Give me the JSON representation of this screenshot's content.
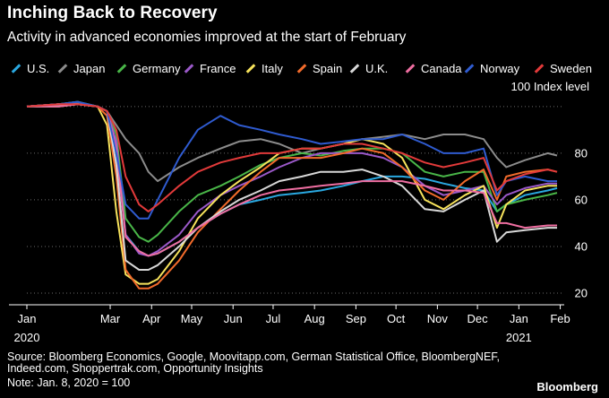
{
  "header": {
    "title": "Inching Back to Recovery",
    "subtitle": "Activity in advanced economies improved at the start of February"
  },
  "footer": {
    "source_line1": "Source: Bloomberg Economics, Google, Moovitapp.com, German Statistical Office, BloombergNEF,",
    "source_line2": "Indeed.com, Shoppertrak.com, Opportunity Insights",
    "note": "Note: Jan. 8, 2020 = 100",
    "brand": "Bloomberg"
  },
  "chart_data": {
    "type": "line",
    "ylabel": "Index level",
    "ylim": [
      15,
      108
    ],
    "yticks": [
      20,
      40,
      60,
      80,
      100
    ],
    "grid": "horizontal dotted",
    "legend_position": "top",
    "x_tick_labels": [
      "Jan",
      "Mar",
      "Apr",
      "May",
      "Jun",
      "Jul",
      "Aug",
      "Sep",
      "Oct",
      "Nov",
      "Dec",
      "Jan",
      "Feb"
    ],
    "x_year_labels": [
      "2020",
      "2021"
    ],
    "x": [
      "Jan 8",
      "Feb 1",
      "Feb 15",
      "Mar 1",
      "Mar 8",
      "Mar 15",
      "Mar 22",
      "Apr 1",
      "Apr 8",
      "Apr 15",
      "May 1",
      "May 15",
      "Jun 1",
      "Jun 15",
      "Jul 1",
      "Jul 15",
      "Aug 1",
      "Aug 15",
      "Sep 1",
      "Sep 15",
      "Oct 1",
      "Oct 15",
      "Nov 1",
      "Nov 15",
      "Dec 1",
      "Dec 15",
      "Dec 25",
      "Jan 1",
      "Jan 15",
      "Feb 1",
      "Feb 8"
    ],
    "series": [
      {
        "name": "U.S.",
        "color": "#2aa8e0",
        "values": [
          100,
          100,
          101,
          100,
          98,
          80,
          45,
          38,
          36,
          37,
          42,
          48,
          54,
          58,
          60,
          62,
          63,
          64,
          66,
          68,
          70,
          70,
          69,
          67,
          65,
          64,
          55,
          58,
          62,
          64,
          65
        ]
      },
      {
        "name": "Japan",
        "color": "#8c8c8c",
        "values": [
          100,
          101,
          102,
          100,
          98,
          92,
          86,
          80,
          72,
          68,
          74,
          78,
          82,
          85,
          86,
          84,
          80,
          82,
          84,
          86,
          87,
          88,
          86,
          88,
          88,
          86,
          78,
          74,
          77,
          80,
          79
        ]
      },
      {
        "name": "Germany",
        "color": "#49b648",
        "values": [
          100,
          101,
          102,
          100,
          98,
          88,
          52,
          44,
          42,
          45,
          55,
          62,
          66,
          70,
          75,
          78,
          80,
          79,
          81,
          82,
          82,
          80,
          72,
          70,
          72,
          72,
          55,
          58,
          60,
          62,
          63
        ]
      },
      {
        "name": "France",
        "color": "#9b59c9",
        "values": [
          100,
          101,
          101,
          100,
          98,
          85,
          45,
          37,
          36,
          38,
          45,
          55,
          62,
          66,
          70,
          74,
          78,
          80,
          80,
          80,
          78,
          74,
          66,
          62,
          64,
          66,
          58,
          62,
          65,
          67,
          67
        ]
      },
      {
        "name": "Italy",
        "color": "#f7e35c",
        "values": [
          100,
          100,
          101,
          100,
          92,
          55,
          28,
          24,
          24,
          26,
          38,
          52,
          62,
          68,
          74,
          80,
          82,
          82,
          84,
          86,
          84,
          78,
          60,
          56,
          62,
          66,
          48,
          58,
          64,
          66,
          66
        ]
      },
      {
        "name": "Spain",
        "color": "#f26b2b",
        "values": [
          100,
          101,
          101,
          100,
          96,
          70,
          30,
          22,
          22,
          24,
          34,
          46,
          56,
          64,
          72,
          78,
          78,
          78,
          80,
          82,
          80,
          74,
          64,
          60,
          68,
          73,
          60,
          70,
          72,
          73,
          72
        ]
      },
      {
        "name": "U.K.",
        "color": "#d8d8d8",
        "values": [
          100,
          101,
          101,
          100,
          98,
          75,
          34,
          30,
          30,
          32,
          40,
          48,
          55,
          60,
          64,
          68,
          70,
          72,
          72,
          73,
          70,
          66,
          56,
          55,
          60,
          64,
          42,
          46,
          47,
          48,
          48
        ]
      },
      {
        "name": "Canada",
        "color": "#ef6ea1",
        "values": [
          100,
          100,
          101,
          100,
          98,
          82,
          44,
          38,
          36,
          37,
          42,
          48,
          54,
          58,
          62,
          64,
          65,
          66,
          67,
          68,
          68,
          68,
          66,
          64,
          64,
          63,
          50,
          50,
          48,
          49,
          49
        ]
      },
      {
        "name": "Norway",
        "color": "#2f5bd0",
        "values": [
          100,
          101,
          102,
          100,
          98,
          80,
          58,
          52,
          52,
          60,
          78,
          90,
          96,
          92,
          90,
          88,
          86,
          84,
          85,
          86,
          86,
          88,
          84,
          80,
          80,
          82,
          62,
          68,
          70,
          68,
          68
        ]
      },
      {
        "name": "Sweden",
        "color": "#e23a3a",
        "values": [
          100,
          101,
          101,
          100,
          98,
          90,
          70,
          58,
          55,
          58,
          66,
          72,
          76,
          78,
          80,
          80,
          82,
          82,
          84,
          84,
          82,
          80,
          76,
          74,
          76,
          78,
          64,
          68,
          71,
          73,
          72
        ]
      }
    ]
  }
}
